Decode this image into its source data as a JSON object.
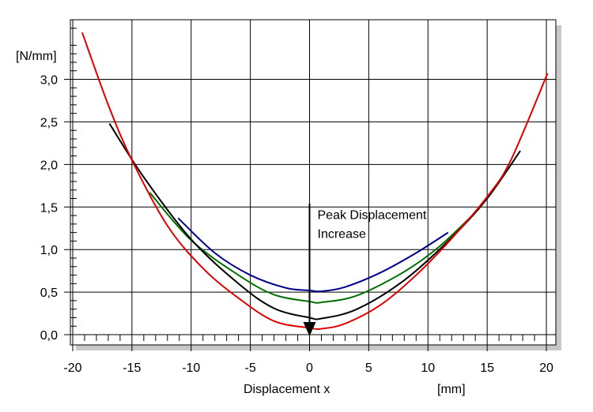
{
  "chart_data": {
    "type": "line",
    "title": "",
    "xlabel": "Displacement x",
    "xunit": "[mm]",
    "ylabel": "[N/mm]",
    "xlim": [
      -20.2,
      20.8
    ],
    "ylim": [
      -0.12,
      3.7
    ],
    "x_ticks": [
      -20,
      -15,
      -10,
      -5,
      0,
      5,
      10,
      15,
      20
    ],
    "x_tick_labels": [
      "-20",
      "-15",
      "-10",
      "-5",
      "0",
      "5",
      "10",
      "15",
      "20"
    ],
    "y_ticks": [
      0.0,
      0.5,
      1.0,
      1.5,
      2.0,
      2.5,
      3.0
    ],
    "y_tick_labels": [
      "0,0",
      "0,5",
      "1,0",
      "1,5",
      "2,0",
      "2,5",
      "3,0"
    ],
    "grid": true,
    "legend": "none",
    "series": [
      {
        "color": "#00008b",
        "x": [
          -11.1,
          -8,
          -5,
          -2,
          0,
          1,
          3,
          6,
          9,
          11.7
        ],
        "y": [
          1.37,
          0.96,
          0.7,
          0.55,
          0.52,
          0.51,
          0.56,
          0.73,
          0.96,
          1.2
        ]
      },
      {
        "color": "#007000",
        "x": [
          -13.5,
          -10,
          -6,
          -3,
          0,
          1,
          4,
          8,
          11,
          14.1
        ],
        "y": [
          1.67,
          1.11,
          0.7,
          0.47,
          0.39,
          0.38,
          0.46,
          0.74,
          1.04,
          1.45
        ]
      },
      {
        "color": "#000000",
        "x": [
          -16.9,
          -14,
          -10,
          -6,
          -3,
          0,
          1,
          4,
          8,
          12,
          15,
          17.8
        ],
        "y": [
          2.48,
          1.85,
          1.12,
          0.6,
          0.31,
          0.2,
          0.19,
          0.3,
          0.64,
          1.14,
          1.6,
          2.16
        ]
      },
      {
        "color": "#e00000",
        "x": [
          -19.2,
          -17,
          -15,
          -12,
          -9,
          -6,
          -3,
          0,
          1,
          3,
          6,
          9,
          12,
          15,
          17,
          20.1
        ],
        "y": [
          3.55,
          2.7,
          2.05,
          1.28,
          0.78,
          0.43,
          0.16,
          0.08,
          0.07,
          0.13,
          0.35,
          0.7,
          1.13,
          1.62,
          2.05,
          3.07
        ]
      }
    ],
    "annotations": [
      {
        "text_lines": [
          "Peak Displacement",
          "Increase"
        ],
        "arrow_x": 0,
        "arrow_y_from": 1.54,
        "arrow_y_to": 0.0
      }
    ]
  }
}
